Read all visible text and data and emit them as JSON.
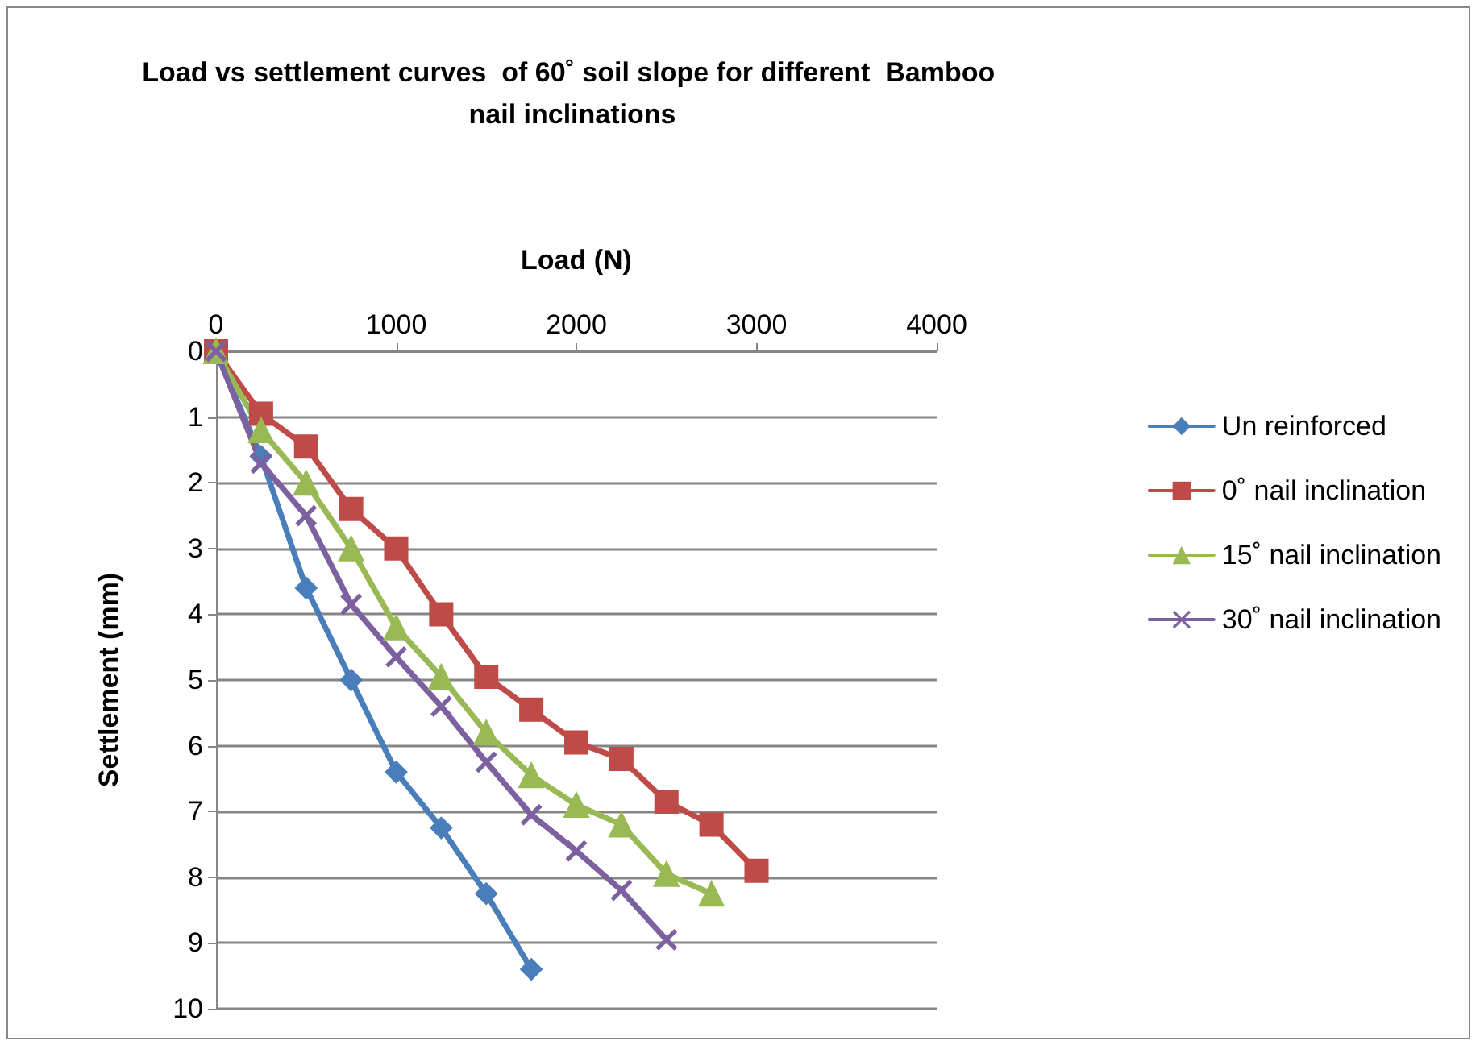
{
  "chart_data": {
    "type": "line",
    "title": "Load vs settlement curves  of 60˚ soil slope for different  Bamboo nail inclinations",
    "xlabel": "Load (N)",
    "ylabel": "Settlement (mm)",
    "xlim": [
      0,
      4000
    ],
    "xticks": [
      0,
      1000,
      2000,
      3000,
      4000
    ],
    "ylim": [
      10,
      0
    ],
    "yticks": [
      0,
      1,
      2,
      3,
      4,
      5,
      6,
      7,
      8,
      9,
      10
    ],
    "grid": "y",
    "legend": "right",
    "series": [
      {
        "name": "Un reinforced",
        "color": "#4a7ebb",
        "marker": "diamond",
        "x": [
          0,
          250,
          500,
          750,
          1000,
          1250,
          1500,
          1750
        ],
        "values": [
          0,
          1.6,
          3.6,
          5.0,
          6.4,
          7.25,
          8.25,
          9.4
        ]
      },
      {
        "name": "0˚ nail inclination",
        "color": "#be4b48",
        "marker": "square",
        "x": [
          0,
          250,
          500,
          750,
          1000,
          1250,
          1500,
          1750,
          2000,
          2250,
          2500,
          2750,
          3000
        ],
        "values": [
          0,
          0.95,
          1.45,
          2.4,
          3.0,
          4.0,
          4.95,
          5.45,
          5.95,
          6.2,
          6.85,
          7.2,
          7.9
        ]
      },
      {
        "name": "15˚ nail inclination",
        "color": "#98b954",
        "marker": "triangle",
        "x": [
          0,
          250,
          500,
          750,
          1000,
          1250,
          1500,
          1750,
          2000,
          2250,
          2500,
          2750
        ],
        "values": [
          0,
          1.2,
          2.0,
          3.0,
          4.2,
          4.95,
          5.8,
          6.45,
          6.9,
          7.2,
          7.95,
          8.25
        ]
      },
      {
        "name": "30˚ nail inclination",
        "color": "#7d60a0",
        "marker": "cross",
        "x": [
          0,
          250,
          500,
          750,
          1000,
          1250,
          1500,
          1750,
          2000,
          2250,
          2500
        ],
        "values": [
          0,
          1.7,
          2.5,
          3.85,
          4.65,
          5.4,
          6.25,
          7.05,
          7.6,
          8.2,
          8.95
        ]
      }
    ]
  }
}
